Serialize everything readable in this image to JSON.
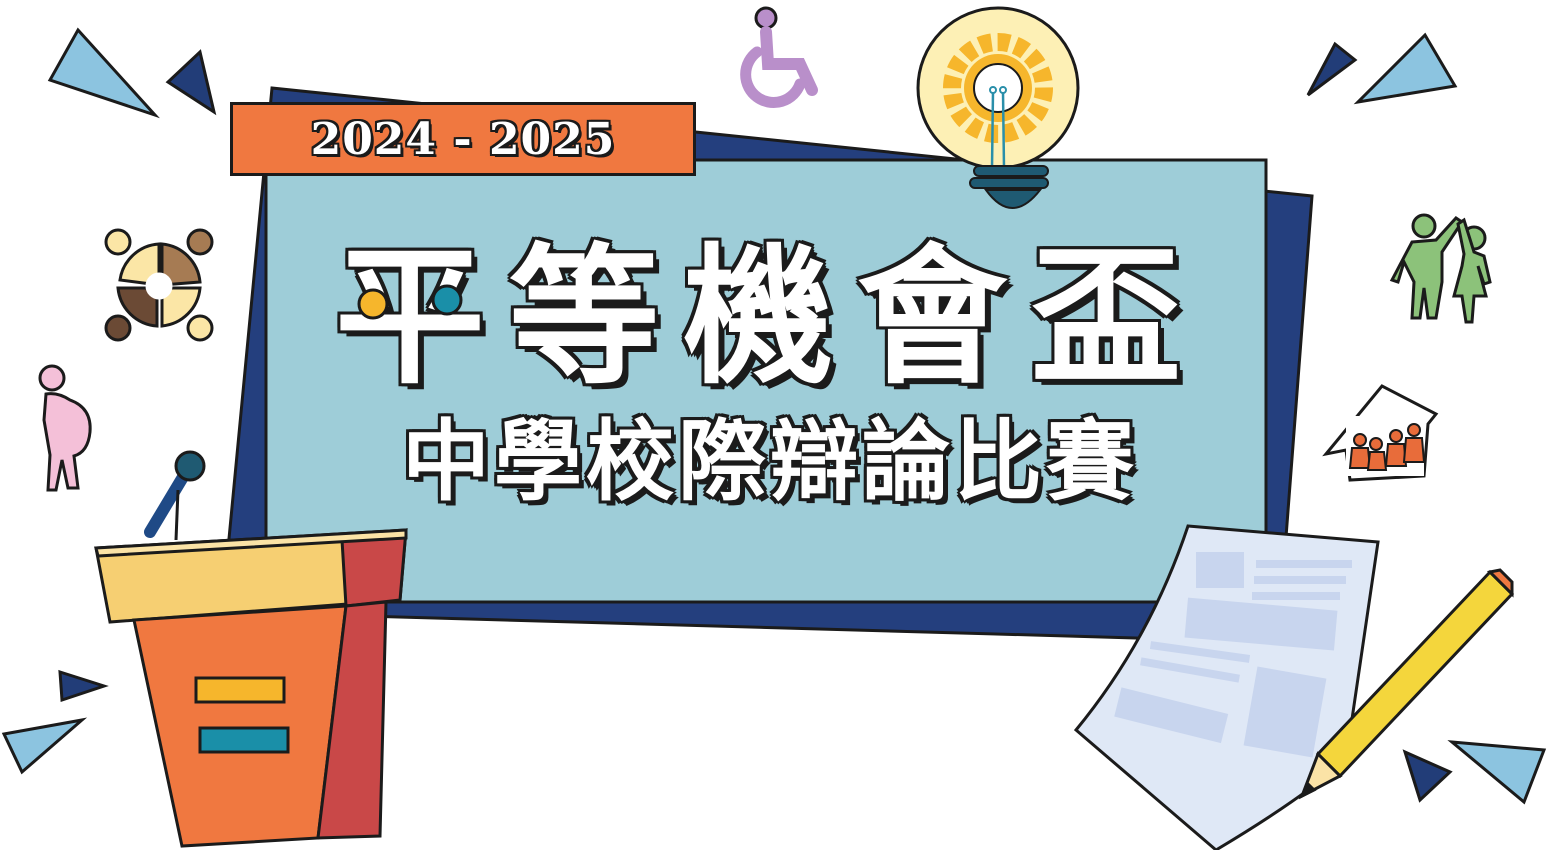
{
  "banner": {
    "year_range": "2024 - 2025",
    "title": "平等機會盃",
    "subtitle": "中學校際辯論比賽"
  },
  "colors": {
    "card_blue": "#9ecdd8",
    "back_card_navy": "#243f7e",
    "banner_orange": "#f07840",
    "podium_orange": "#f07840",
    "podium_red": "#c94848",
    "podium_top": "#f6cf72",
    "pencil_yellow": "#f4d63c",
    "paper_blue": "#dfe8f6",
    "triangle_light": "#8cc4e0",
    "triangle_dark": "#223d78",
    "bulb_cream": "#fdf0b5",
    "gear_yellow": "#f6b62c",
    "wheelchair_purple": "#b98fca",
    "pregnant_pink": "#f4c0d8",
    "family_green": "#8cc27a",
    "house_orange": "#e86c3a"
  },
  "icons": [
    "wheelchair-icon",
    "lightbulb-gear-icon",
    "diverse-people-circle-icon",
    "pregnant-woman-icon",
    "microphone-icon",
    "high-five-people-icon",
    "family-house-icon",
    "podium-icon",
    "document-icon",
    "pencil-icon"
  ]
}
